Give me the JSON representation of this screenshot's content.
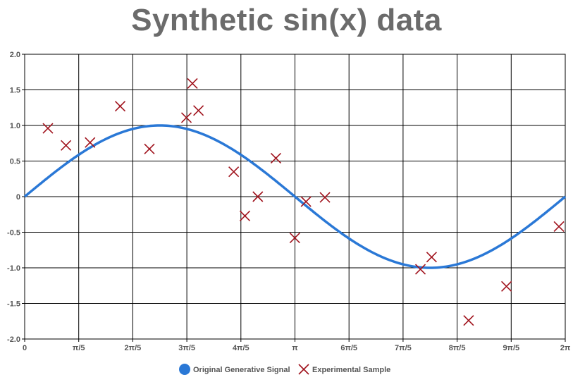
{
  "chart_data": {
    "type": "line",
    "title": "Synthetic sin(x) data",
    "xlabel": "",
    "ylabel": "",
    "xlim": [
      0,
      6.2832
    ],
    "ylim": [
      -2.0,
      2.0
    ],
    "grid": true,
    "legend_position": "bottom",
    "x_ticks": [
      {
        "value": 0,
        "label": "0"
      },
      {
        "value": 0.6283,
        "label": "π/5"
      },
      {
        "value": 1.2566,
        "label": "2π/5"
      },
      {
        "value": 1.885,
        "label": "3π/5"
      },
      {
        "value": 2.5133,
        "label": "4π/5"
      },
      {
        "value": 3.1416,
        "label": "π"
      },
      {
        "value": 3.7699,
        "label": "6π/5"
      },
      {
        "value": 4.3982,
        "label": "7π/5"
      },
      {
        "value": 5.0265,
        "label": "8π/5"
      },
      {
        "value": 5.6549,
        "label": "9π/5"
      },
      {
        "value": 6.2832,
        "label": "2π"
      }
    ],
    "y_ticks": [
      {
        "value": 2.0,
        "label": "2.0"
      },
      {
        "value": 1.5,
        "label": "1.5"
      },
      {
        "value": 1.0,
        "label": "1.0"
      },
      {
        "value": 0.5,
        "label": "0.5"
      },
      {
        "value": 0,
        "label": "0"
      },
      {
        "value": -0.5,
        "label": "-0.5"
      },
      {
        "value": -1.0,
        "label": "-1.0"
      },
      {
        "value": -1.5,
        "label": "-1.5"
      },
      {
        "value": -2.0,
        "label": "-2.0"
      }
    ],
    "series": [
      {
        "name": "Original Generative Signal",
        "type": "line",
        "function": "sin(x)",
        "color": "#2a78d6"
      },
      {
        "name": "Experimental Sample",
        "type": "scatter",
        "marker": "x",
        "color": "#a0121c",
        "points": [
          {
            "x": 0.27,
            "y": 0.96
          },
          {
            "x": 0.48,
            "y": 0.72
          },
          {
            "x": 0.76,
            "y": 0.76
          },
          {
            "x": 1.11,
            "y": 1.27
          },
          {
            "x": 1.45,
            "y": 0.67
          },
          {
            "x": 1.88,
            "y": 1.11
          },
          {
            "x": 1.95,
            "y": 1.59
          },
          {
            "x": 2.02,
            "y": 1.21
          },
          {
            "x": 2.43,
            "y": 0.35
          },
          {
            "x": 2.56,
            "y": -0.27
          },
          {
            "x": 2.71,
            "y": 0.0
          },
          {
            "x": 2.92,
            "y": 0.54
          },
          {
            "x": 3.14,
            "y": -0.58
          },
          {
            "x": 3.27,
            "y": -0.07
          },
          {
            "x": 3.49,
            "y": -0.01
          },
          {
            "x": 4.6,
            "y": -1.02
          },
          {
            "x": 4.73,
            "y": -0.85
          },
          {
            "x": 5.16,
            "y": -1.74
          },
          {
            "x": 5.6,
            "y": -1.26
          },
          {
            "x": 6.21,
            "y": -0.42
          }
        ]
      }
    ]
  }
}
